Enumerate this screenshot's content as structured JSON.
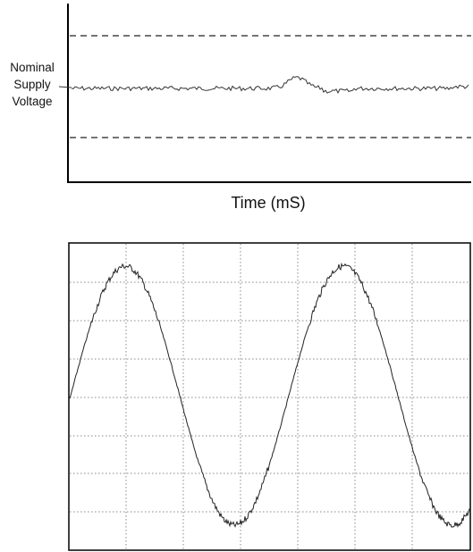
{
  "top_panel": {
    "label_lines": [
      "Nominal",
      "Supply",
      "Voltage"
    ],
    "xlabel": "Time (mS)",
    "line_color": "#333333",
    "axis_color": "#000000"
  },
  "bottom_panel": {
    "grid": true,
    "grid_style": "dotted",
    "trace_color": "#222222",
    "waveform": "sine with noise",
    "cycles_shown": 2
  }
}
